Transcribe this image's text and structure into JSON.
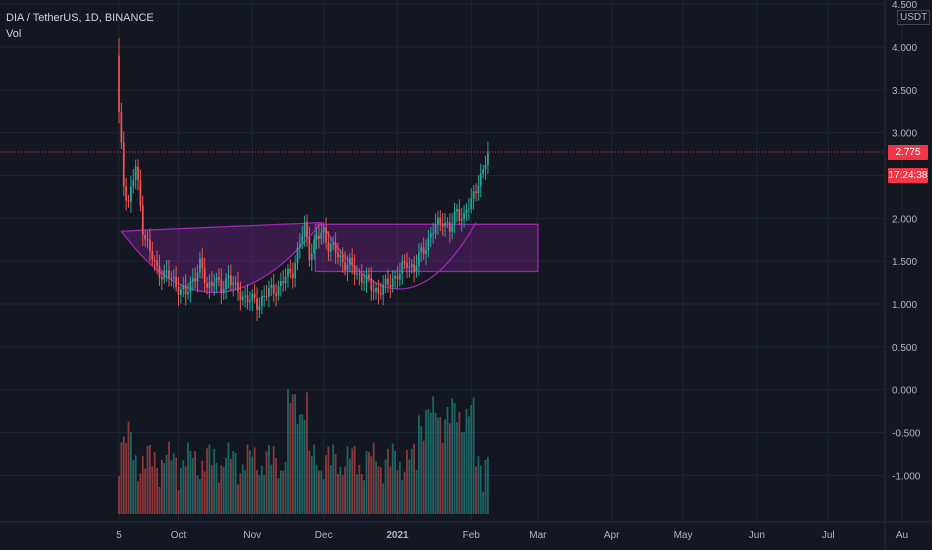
{
  "header": {
    "symbol_line": "DIA / TetherUS, 1D, BINANCE",
    "vol_label": "Vol"
  },
  "axis": {
    "unit": "USDT",
    "price_badge": "2.775",
    "countdown_badge": "17:24:38"
  },
  "colors": {
    "background": "#131722",
    "up": "#26a69a",
    "down": "#ef5350",
    "pattern_fill": "#9c27b0",
    "current_price_line": "#f23645"
  },
  "chart_data": {
    "type": "candlestick",
    "title": "DIA / TetherUS, 1D, BINANCE",
    "y_ticks": [
      "4.500",
      "4.000",
      "3.500",
      "3.000",
      "2.500",
      "2.000",
      "1.500",
      "1.000",
      "0.500",
      "0.000",
      "-0.500",
      "-1.000"
    ],
    "y_tick_values": [
      4.5,
      4.0,
      3.5,
      3.0,
      2.5,
      2.0,
      1.5,
      1.0,
      0.5,
      0.0,
      -0.5,
      -1.0
    ],
    "x_ticks": [
      "5",
      "Oct",
      "Nov",
      "Dec",
      "2021",
      "Feb",
      "Mar",
      "Apr",
      "May",
      "Jun",
      "Jul",
      "Au"
    ],
    "x_tick_days": [
      0,
      25,
      56,
      86,
      117,
      148,
      176,
      207,
      237,
      268,
      298,
      329
    ],
    "ylim": [
      -1.45,
      4.6
    ],
    "current_price": 2.775,
    "key_closes": [
      {
        "day": 0,
        "close": 3.2
      },
      {
        "day": 2,
        "close": 2.4
      },
      {
        "day": 4,
        "close": 2.2
      },
      {
        "day": 7,
        "close": 2.6
      },
      {
        "day": 10,
        "close": 1.9
      },
      {
        "day": 13,
        "close": 1.6
      },
      {
        "day": 16,
        "close": 1.4
      },
      {
        "day": 19,
        "close": 1.35
      },
      {
        "day": 22,
        "close": 1.3
      },
      {
        "day": 25,
        "close": 1.2
      },
      {
        "day": 28,
        "close": 1.1
      },
      {
        "day": 31,
        "close": 1.3
      },
      {
        "day": 34,
        "close": 1.45
      },
      {
        "day": 37,
        "close": 1.2
      },
      {
        "day": 40,
        "close": 1.3
      },
      {
        "day": 43,
        "close": 1.15
      },
      {
        "day": 46,
        "close": 1.35
      },
      {
        "day": 49,
        "close": 1.15
      },
      {
        "day": 52,
        "close": 1.1
      },
      {
        "day": 55,
        "close": 1.05
      },
      {
        "day": 58,
        "close": 1.0
      },
      {
        "day": 61,
        "close": 1.1
      },
      {
        "day": 64,
        "close": 1.15
      },
      {
        "day": 67,
        "close": 1.2
      },
      {
        "day": 70,
        "close": 1.3
      },
      {
        "day": 73,
        "close": 1.4
      },
      {
        "day": 76,
        "close": 1.7
      },
      {
        "day": 78,
        "close": 1.9
      },
      {
        "day": 80,
        "close": 1.6
      },
      {
        "day": 83,
        "close": 1.75
      },
      {
        "day": 86,
        "close": 1.85
      },
      {
        "day": 88,
        "close": 1.7
      },
      {
        "day": 91,
        "close": 1.6
      },
      {
        "day": 94,
        "close": 1.5
      },
      {
        "day": 97,
        "close": 1.45
      },
      {
        "day": 100,
        "close": 1.35
      },
      {
        "day": 103,
        "close": 1.3
      },
      {
        "day": 106,
        "close": 1.2
      },
      {
        "day": 109,
        "close": 1.15
      },
      {
        "day": 112,
        "close": 1.2
      },
      {
        "day": 115,
        "close": 1.3
      },
      {
        "day": 118,
        "close": 1.35
      },
      {
        "day": 121,
        "close": 1.5
      },
      {
        "day": 124,
        "close": 1.4
      },
      {
        "day": 127,
        "close": 1.6
      },
      {
        "day": 130,
        "close": 1.75
      },
      {
        "day": 133,
        "close": 1.9
      },
      {
        "day": 136,
        "close": 2.0
      },
      {
        "day": 139,
        "close": 1.85
      },
      {
        "day": 142,
        "close": 2.1
      },
      {
        "day": 145,
        "close": 2.0
      },
      {
        "day": 148,
        "close": 2.2
      },
      {
        "day": 151,
        "close": 2.45
      },
      {
        "day": 153,
        "close": 2.5
      },
      {
        "day": 155,
        "close": 2.775
      }
    ],
    "peak": {
      "day": 0,
      "high": 4.1
    },
    "pattern": {
      "cup_bottom": 0.92,
      "handle_bottom": 1.02,
      "rim": 1.95,
      "box": {
        "from_day": 85,
        "to_day": 176,
        "top": 1.93,
        "bottom": 1.38
      }
    },
    "volume_note": "volume histogram in lower pane, largest bars near Nov end and late Jan"
  }
}
